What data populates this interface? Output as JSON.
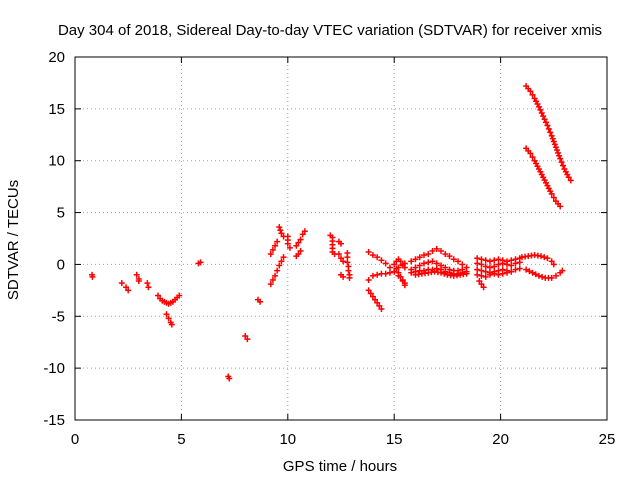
{
  "chart_data": {
    "type": "scatter",
    "title": "Day 304 of 2018, Sidereal Day-to-day VTEC variation (SDTVAR) for receiver xmis",
    "xlabel": "GPS time / hours",
    "ylabel": "SDTVAR / TECUs",
    "xlim": [
      0,
      25
    ],
    "ylim": [
      -15,
      20
    ],
    "x_ticks": [
      0,
      5,
      10,
      15,
      20,
      25
    ],
    "y_ticks": [
      -15,
      -10,
      -5,
      0,
      5,
      10,
      15,
      20
    ],
    "x_tick_labels": [
      "0",
      "5",
      "10",
      "15",
      "20",
      "25"
    ],
    "y_tick_labels": [
      "-15",
      "-10",
      "-5",
      "0",
      "5",
      "10",
      "15",
      "20"
    ],
    "grid": true,
    "marker": "+",
    "color": "#ff0000",
    "series": [
      {
        "name": "SDTVAR",
        "segments": [
          [
            [
              0.8,
              -1.0
            ],
            [
              0.82,
              -1.2
            ]
          ],
          [
            [
              2.2,
              -1.8
            ],
            [
              2.4,
              -2.2
            ],
            [
              2.5,
              -2.5
            ]
          ],
          [
            [
              2.9,
              -1.0
            ],
            [
              3.0,
              -1.4
            ],
            [
              3.0,
              -1.6
            ]
          ],
          [
            [
              3.4,
              -1.8
            ],
            [
              3.45,
              -2.2
            ]
          ],
          [
            [
              3.9,
              -3.0
            ],
            [
              4.0,
              -3.3
            ],
            [
              4.1,
              -3.5
            ],
            [
              4.2,
              -3.6
            ],
            [
              4.3,
              -3.7
            ],
            [
              4.4,
              -3.8
            ],
            [
              4.5,
              -3.7
            ],
            [
              4.6,
              -3.6
            ],
            [
              4.7,
              -3.4
            ],
            [
              4.8,
              -3.2
            ],
            [
              4.9,
              -3.0
            ]
          ],
          [
            [
              4.3,
              -4.8
            ],
            [
              4.4,
              -5.2
            ],
            [
              4.5,
              -5.6
            ],
            [
              4.55,
              -5.8
            ]
          ],
          [
            [
              5.8,
              0.1
            ],
            [
              5.9,
              0.2
            ]
          ],
          [
            [
              7.2,
              -10.8
            ],
            [
              7.25,
              -11.0
            ]
          ],
          [
            [
              8.0,
              -6.9
            ],
            [
              8.1,
              -7.2
            ]
          ],
          [
            [
              8.6,
              -3.4
            ],
            [
              8.7,
              -3.6
            ]
          ],
          [
            [
              9.2,
              -1.9
            ],
            [
              9.3,
              -1.5
            ],
            [
              9.4,
              -1.1
            ],
            [
              9.5,
              -0.6
            ],
            [
              9.6,
              -0.1
            ],
            [
              9.7,
              0.3
            ],
            [
              9.8,
              0.7
            ]
          ],
          [
            [
              9.2,
              1.0
            ],
            [
              9.3,
              1.4
            ],
            [
              9.4,
              1.8
            ],
            [
              9.5,
              2.2
            ]
          ],
          [
            [
              9.6,
              3.6
            ],
            [
              9.7,
              3.0
            ],
            [
              9.8,
              2.7
            ]
          ],
          [
            [
              10.0,
              2.7
            ],
            [
              10.0,
              2.0
            ],
            [
              10.1,
              1.6
            ]
          ],
          [
            [
              10.4,
              1.8
            ],
            [
              10.5,
              2.1
            ],
            [
              10.6,
              2.4
            ],
            [
              10.7,
              2.9
            ],
            [
              10.8,
              3.2
            ]
          ],
          [
            [
              10.4,
              0.8
            ],
            [
              10.5,
              1.0
            ],
            [
              10.6,
              1.3
            ]
          ],
          [
            [
              12.0,
              2.8
            ],
            [
              12.1,
              2.6
            ],
            [
              12.1,
              1.2
            ],
            [
              12.2,
              1.0
            ]
          ],
          [
            [
              12.4,
              2.2
            ],
            [
              12.5,
              2.0
            ]
          ],
          [
            [
              12.4,
              1.0
            ],
            [
              12.5,
              0.6
            ],
            [
              12.6,
              0.3
            ]
          ],
          [
            [
              12.5,
              -1.0
            ],
            [
              12.6,
              -1.2
            ]
          ],
          [
            [
              12.8,
              1.1
            ],
            [
              12.8,
              0.7
            ],
            [
              12.8,
              0.2
            ],
            [
              12.85,
              -0.2
            ],
            [
              12.85,
              -0.6
            ],
            [
              12.9,
              -1.0
            ],
            [
              12.9,
              -1.3
            ]
          ],
          [
            [
              13.8,
              1.2
            ],
            [
              14.0,
              0.9
            ],
            [
              14.2,
              0.7
            ],
            [
              14.4,
              0.4
            ],
            [
              14.6,
              0.1
            ],
            [
              14.8,
              -0.3
            ],
            [
              15.0,
              -0.7
            ],
            [
              15.2,
              -1.1
            ],
            [
              15.4,
              -1.5
            ],
            [
              15.5,
              -1.8
            ]
          ],
          [
            [
              13.8,
              -1.5
            ],
            [
              14.0,
              -1.1
            ],
            [
              14.2,
              -1.0
            ],
            [
              14.4,
              -0.9
            ],
            [
              14.6,
              -0.9
            ],
            [
              14.8,
              -0.8
            ],
            [
              15.0,
              -0.7
            ],
            [
              15.2,
              -0.3
            ],
            [
              15.4,
              -0.1
            ],
            [
              15.5,
              0.1
            ]
          ],
          [
            [
              13.8,
              -2.5
            ],
            [
              13.9,
              -2.8
            ],
            [
              14.0,
              -3.1
            ],
            [
              14.1,
              -3.4
            ],
            [
              14.2,
              -3.7
            ],
            [
              14.3,
              -4.0
            ],
            [
              14.4,
              -4.3
            ]
          ],
          [
            [
              15.0,
              0.0
            ],
            [
              15.1,
              -0.4
            ],
            [
              15.2,
              -0.8
            ],
            [
              15.3,
              -1.2
            ],
            [
              15.4,
              -1.6
            ],
            [
              15.5,
              -2.0
            ]
          ],
          [
            [
              15.1,
              0.3
            ],
            [
              15.2,
              0.5
            ],
            [
              15.3,
              0.3
            ],
            [
              15.4,
              0.0
            ],
            [
              15.5,
              -0.3
            ]
          ],
          [
            [
              15.8,
              0.3
            ],
            [
              16.0,
              0.5
            ],
            [
              16.2,
              0.7
            ],
            [
              16.4,
              0.9
            ],
            [
              16.6,
              1.0
            ],
            [
              16.8,
              1.3
            ],
            [
              17.0,
              1.5
            ],
            [
              17.2,
              1.3
            ],
            [
              17.4,
              1.0
            ],
            [
              17.6,
              0.8
            ],
            [
              17.8,
              0.5
            ],
            [
              18.0,
              0.3
            ],
            [
              18.2,
              0.0
            ],
            [
              18.4,
              -0.3
            ]
          ],
          [
            [
              15.8,
              -0.5
            ],
            [
              16.0,
              -0.3
            ],
            [
              16.2,
              -0.1
            ],
            [
              16.4,
              0.1
            ],
            [
              16.6,
              0.2
            ],
            [
              16.8,
              0.3
            ],
            [
              17.0,
              0.1
            ],
            [
              17.2,
              -0.1
            ],
            [
              17.4,
              -0.3
            ],
            [
              17.6,
              -0.5
            ],
            [
              17.8,
              -0.6
            ],
            [
              18.0,
              -0.6
            ],
            [
              18.2,
              -0.5
            ]
          ],
          [
            [
              15.8,
              -0.8
            ],
            [
              16.0,
              -0.7
            ],
            [
              16.2,
              -0.6
            ],
            [
              16.4,
              -0.6
            ],
            [
              16.6,
              -0.5
            ],
            [
              16.8,
              -0.5
            ],
            [
              17.0,
              -0.4
            ],
            [
              17.2,
              -0.5
            ],
            [
              17.4,
              -0.7
            ],
            [
              17.6,
              -0.8
            ],
            [
              17.8,
              -0.9
            ],
            [
              18.0,
              -0.9
            ],
            [
              18.2,
              -0.8
            ],
            [
              18.4,
              -0.7
            ]
          ],
          [
            [
              16.0,
              -1.0
            ],
            [
              16.3,
              -0.9
            ],
            [
              16.6,
              -0.8
            ],
            [
              16.9,
              -0.7
            ],
            [
              17.2,
              -0.8
            ],
            [
              17.5,
              -1.0
            ],
            [
              17.8,
              -1.1
            ],
            [
              18.1,
              -1.0
            ],
            [
              18.4,
              -0.9
            ]
          ],
          [
            [
              18.9,
              0.6
            ],
            [
              19.1,
              0.5
            ],
            [
              19.3,
              0.4
            ],
            [
              19.5,
              0.3
            ],
            [
              19.7,
              0.4
            ],
            [
              19.9,
              0.5
            ],
            [
              20.1,
              0.4
            ],
            [
              20.3,
              0.3
            ],
            [
              20.5,
              0.4
            ],
            [
              20.7,
              0.5
            ],
            [
              20.9,
              0.6
            ]
          ],
          [
            [
              18.9,
              0.1
            ],
            [
              19.1,
              0.0
            ],
            [
              19.3,
              -0.2
            ],
            [
              19.5,
              -0.3
            ],
            [
              19.7,
              -0.2
            ],
            [
              19.9,
              0.0
            ],
            [
              20.1,
              0.1
            ],
            [
              20.3,
              0.0
            ],
            [
              20.5,
              -0.1
            ],
            [
              20.7,
              0.1
            ],
            [
              20.9,
              0.2
            ]
          ],
          [
            [
              18.9,
              -0.5
            ],
            [
              19.1,
              -0.6
            ],
            [
              19.3,
              -0.7
            ],
            [
              19.5,
              -0.8
            ],
            [
              19.7,
              -0.7
            ],
            [
              19.9,
              -0.6
            ],
            [
              20.1,
              -0.5
            ],
            [
              20.3,
              -0.6
            ],
            [
              20.5,
              -0.7
            ],
            [
              20.7,
              -0.5
            ],
            [
              20.9,
              -0.4
            ]
          ],
          [
            [
              18.9,
              -1.0
            ],
            [
              19.1,
              -1.1
            ],
            [
              19.3,
              -1.2
            ],
            [
              19.5,
              -1.0
            ],
            [
              19.7,
              -0.9
            ],
            [
              19.9,
              -1.0
            ],
            [
              20.1,
              -0.9
            ],
            [
              20.3,
              -0.8
            ],
            [
              20.5,
              -0.7
            ]
          ],
          [
            [
              19.0,
              -1.6
            ],
            [
              19.1,
              -1.9
            ],
            [
              19.2,
              -2.2
            ]
          ],
          [
            [
              21.0,
              0.7
            ],
            [
              21.3,
              0.8
            ],
            [
              21.6,
              0.9
            ],
            [
              21.9,
              0.8
            ],
            [
              22.2,
              0.6
            ],
            [
              22.4,
              0.3
            ],
            [
              22.5,
              0.0
            ]
          ],
          [
            [
              21.2,
              -0.5
            ],
            [
              21.5,
              -0.8
            ],
            [
              21.8,
              -1.1
            ],
            [
              22.1,
              -1.3
            ],
            [
              22.4,
              -1.3
            ],
            [
              22.6,
              -1.1
            ],
            [
              22.8,
              -0.8
            ],
            [
              22.9,
              -0.6
            ]
          ],
          [
            [
              21.2,
              17.2
            ],
            [
              21.4,
              16.7
            ],
            [
              21.6,
              16.0
            ],
            [
              21.8,
              15.2
            ],
            [
              22.0,
              14.3
            ],
            [
              22.2,
              13.4
            ],
            [
              22.4,
              12.4
            ],
            [
              22.6,
              11.3
            ],
            [
              22.8,
              10.2
            ],
            [
              23.0,
              9.2
            ],
            [
              23.2,
              8.4
            ],
            [
              23.3,
              8.1
            ]
          ],
          [
            [
              21.2,
              11.2
            ],
            [
              21.4,
              10.7
            ],
            [
              21.6,
              10.0
            ],
            [
              21.8,
              9.2
            ],
            [
              22.0,
              8.4
            ],
            [
              22.2,
              7.6
            ],
            [
              22.4,
              6.8
            ],
            [
              22.6,
              6.1
            ],
            [
              22.8,
              5.6
            ]
          ]
        ]
      }
    ]
  }
}
